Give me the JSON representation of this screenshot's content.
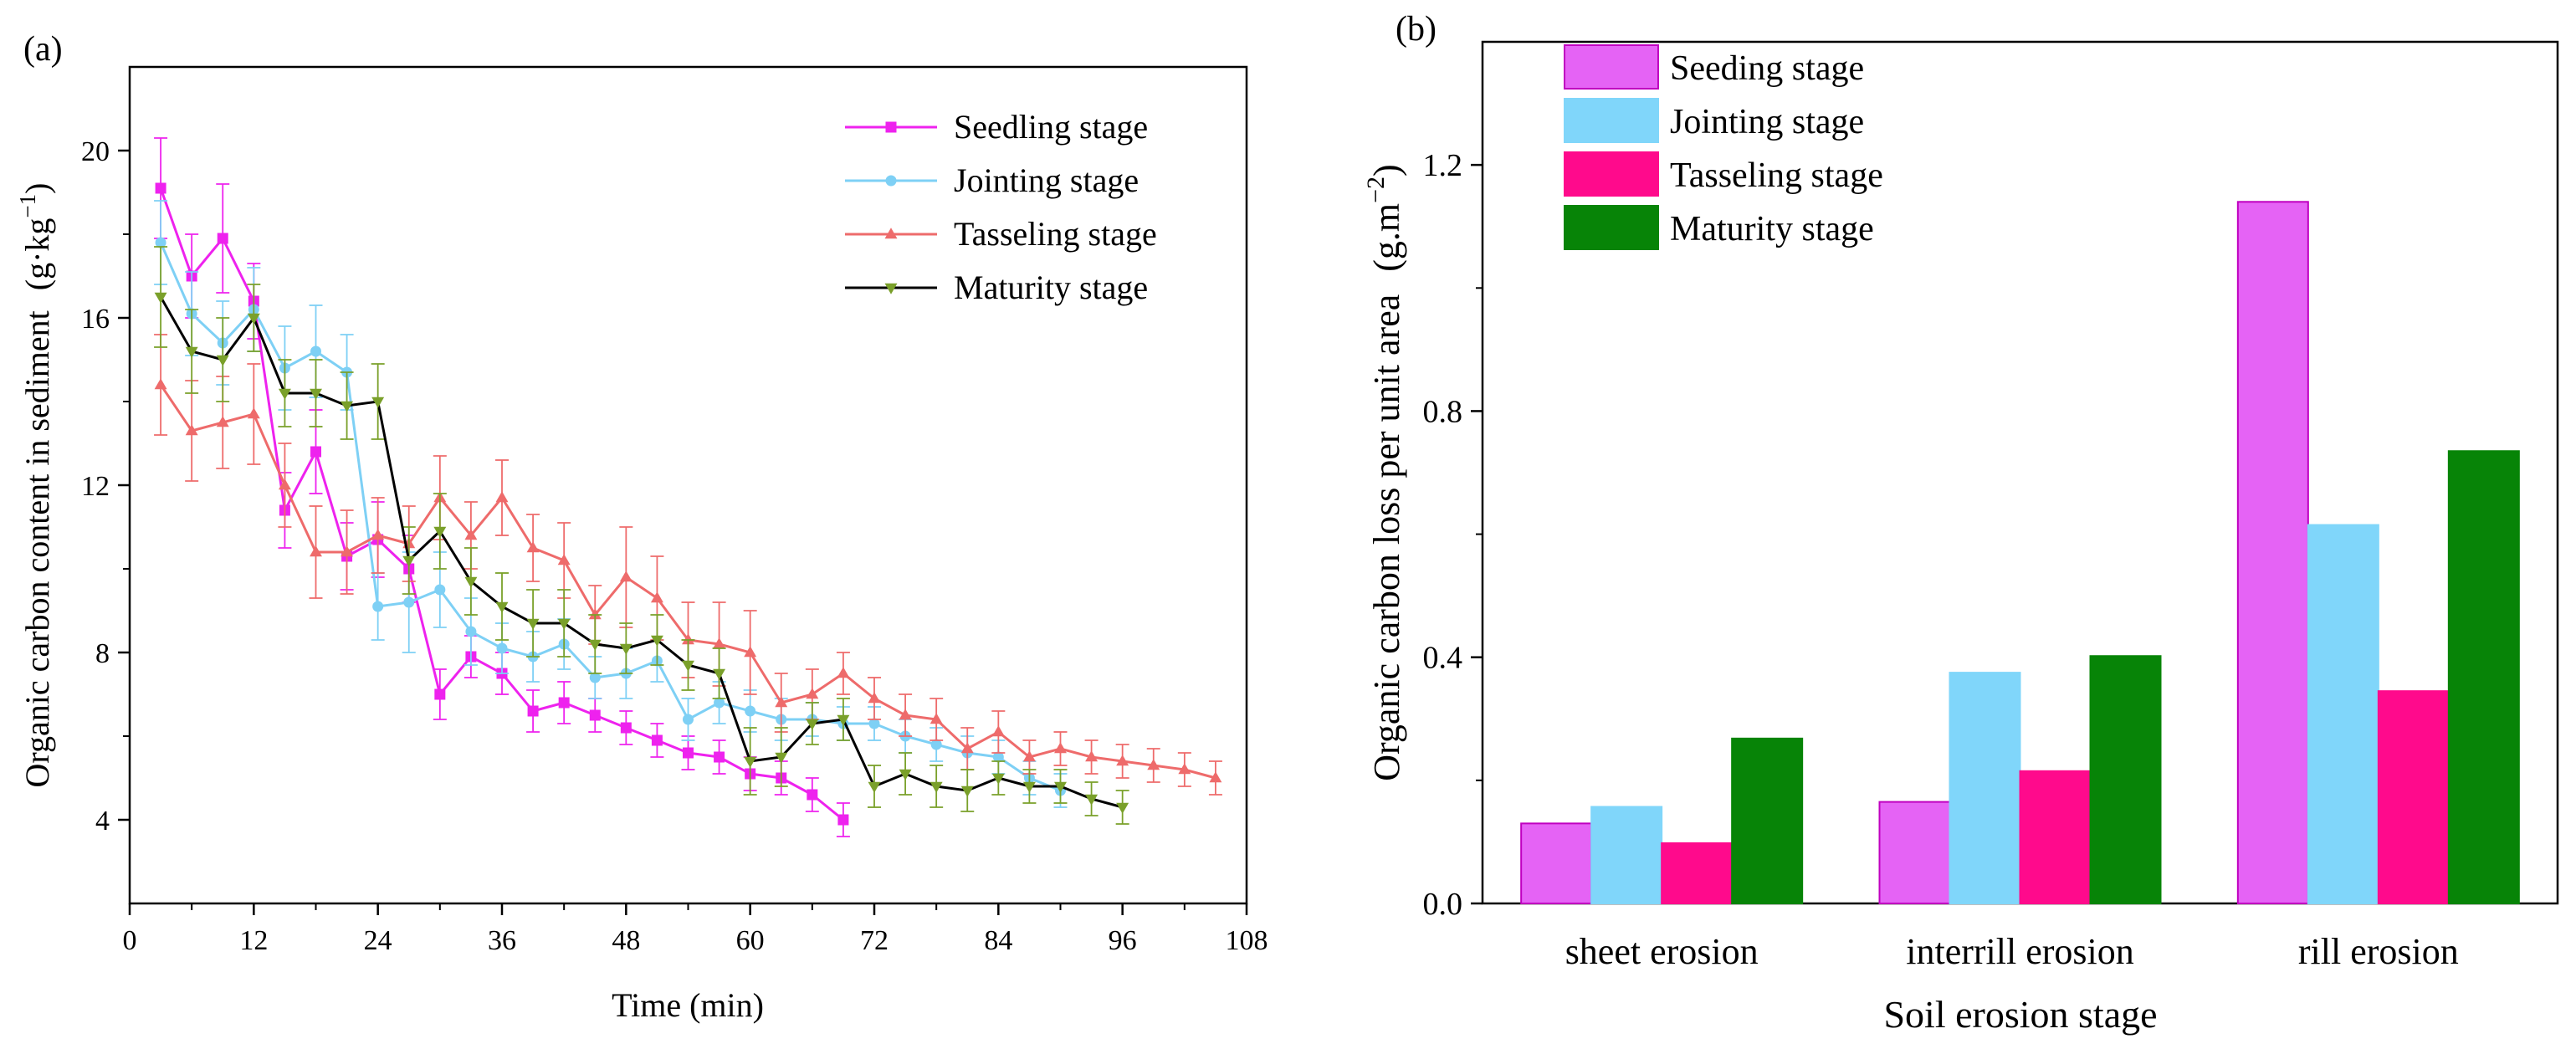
{
  "chart_data": [
    {
      "type": "line",
      "panel_label": "(a)",
      "title": "",
      "xlabel": "Time (min)",
      "ylabel_main": "Organic carbon content in sediment",
      "ylabel_unit": "(g·kg",
      "ylabel_unit_sup": "−1",
      "ylabel_unit_close": ")",
      "xlim": [
        0,
        108
      ],
      "ylim": [
        2.0,
        22.0
      ],
      "xticks": [
        0,
        12,
        24,
        36,
        48,
        60,
        72,
        84,
        96,
        108
      ],
      "yticks": [
        4,
        8,
        12,
        16,
        20
      ],
      "legend_position": "top-right",
      "series": [
        {
          "name": "Seedling stage",
          "color": "#EE22EE",
          "marker": "square",
          "x": [
            3,
            6,
            9,
            12,
            15,
            18,
            21,
            24,
            27,
            30,
            33,
            36,
            39,
            42,
            45,
            48,
            51,
            54,
            57,
            60,
            63,
            66,
            69
          ],
          "y": [
            19.1,
            17.0,
            17.9,
            16.4,
            11.4,
            12.8,
            10.3,
            10.7,
            10.0,
            7.0,
            7.9,
            7.5,
            6.6,
            6.8,
            6.5,
            6.2,
            5.9,
            5.6,
            5.5,
            5.1,
            5.0,
            4.6,
            4.0
          ],
          "err": [
            1.2,
            1.0,
            1.3,
            0.9,
            0.9,
            1.0,
            0.8,
            0.9,
            0.8,
            0.6,
            0.5,
            0.5,
            0.5,
            0.5,
            0.4,
            0.4,
            0.4,
            0.4,
            0.4,
            0.4,
            0.4,
            0.4,
            0.4
          ]
        },
        {
          "name": "Jointing stage",
          "color": "#7ED0F5",
          "marker": "circle",
          "x": [
            3,
            6,
            9,
            12,
            15,
            18,
            21,
            24,
            27,
            30,
            33,
            36,
            39,
            42,
            45,
            48,
            51,
            54,
            57,
            60,
            63,
            66,
            69,
            72,
            75,
            78,
            81,
            84,
            87,
            90
          ],
          "y": [
            17.8,
            16.1,
            15.4,
            16.2,
            14.8,
            15.2,
            14.7,
            9.1,
            9.2,
            9.5,
            8.5,
            8.1,
            7.9,
            8.2,
            7.4,
            7.5,
            7.8,
            6.4,
            6.8,
            6.6,
            6.4,
            6.4,
            6.3,
            6.3,
            6.0,
            5.8,
            5.6,
            5.5,
            5.0,
            4.7
          ],
          "err": [
            1.0,
            1.0,
            1.0,
            1.0,
            1.0,
            1.1,
            0.9,
            0.8,
            1.2,
            0.9,
            0.8,
            0.6,
            0.6,
            0.6,
            0.5,
            0.6,
            0.5,
            0.5,
            0.5,
            0.5,
            0.5,
            0.4,
            0.4,
            0.4,
            0.4,
            0.4,
            0.4,
            0.4,
            0.4,
            0.4
          ]
        },
        {
          "name": "Tasseling stage",
          "color": "#EE6B6B",
          "marker": "triangle-up",
          "x": [
            3,
            6,
            9,
            12,
            15,
            18,
            21,
            24,
            27,
            30,
            33,
            36,
            39,
            42,
            45,
            48,
            51,
            54,
            57,
            60,
            63,
            66,
            69,
            72,
            75,
            78,
            81,
            84,
            87,
            90,
            93,
            96,
            99,
            102,
            105
          ],
          "y": [
            14.4,
            13.3,
            13.5,
            13.7,
            12.0,
            10.4,
            10.4,
            10.8,
            10.6,
            11.7,
            10.8,
            11.7,
            10.5,
            10.2,
            8.9,
            9.8,
            9.3,
            8.3,
            8.2,
            8.0,
            6.8,
            7.0,
            7.5,
            6.9,
            6.5,
            6.4,
            5.7,
            6.1,
            5.5,
            5.7,
            5.5,
            5.4,
            5.3,
            5.2,
            5.0
          ],
          "err": [
            1.2,
            1.2,
            1.1,
            1.2,
            1.0,
            1.1,
            1.0,
            0.9,
            0.9,
            1.0,
            0.8,
            0.9,
            0.8,
            0.9,
            0.7,
            1.2,
            1.0,
            0.9,
            1.0,
            1.0,
            0.7,
            0.6,
            0.5,
            0.5,
            0.5,
            0.5,
            0.5,
            0.5,
            0.4,
            0.4,
            0.4,
            0.4,
            0.4,
            0.4,
            0.4
          ]
        },
        {
          "name": "Maturity stage",
          "color": "#000000",
          "marker_color": "#7AA02A",
          "err_color": "#7AA02A",
          "marker": "triangle-down",
          "x": [
            3,
            6,
            9,
            12,
            15,
            18,
            21,
            24,
            27,
            30,
            33,
            36,
            39,
            42,
            45,
            48,
            51,
            54,
            57,
            60,
            63,
            66,
            69,
            72,
            75,
            78,
            81,
            84,
            87,
            90,
            93,
            96
          ],
          "y": [
            16.5,
            15.2,
            15.0,
            16.0,
            14.2,
            14.2,
            13.9,
            14.0,
            10.2,
            10.9,
            9.7,
            9.1,
            8.7,
            8.7,
            8.2,
            8.1,
            8.3,
            7.7,
            7.5,
            5.4,
            5.5,
            6.3,
            6.4,
            4.8,
            5.1,
            4.8,
            4.7,
            5.0,
            4.8,
            4.8,
            4.5,
            4.3
          ],
          "err": [
            1.2,
            1.0,
            1.0,
            0.8,
            0.8,
            0.8,
            0.8,
            0.9,
            0.8,
            0.9,
            0.8,
            0.8,
            0.8,
            0.8,
            0.7,
            0.6,
            0.6,
            0.6,
            0.6,
            0.8,
            0.7,
            0.5,
            0.5,
            0.5,
            0.5,
            0.5,
            0.5,
            0.4,
            0.4,
            0.4,
            0.4,
            0.4
          ]
        }
      ]
    },
    {
      "type": "bar",
      "panel_label": "(b)",
      "title": "",
      "xlabel": "Soil erosion stage",
      "ylabel_main": "Organic carbon loss per unit area",
      "ylabel_unit": "(g.m",
      "ylabel_unit_sup": "−2",
      "ylabel_unit_close": ")",
      "ylim": [
        0.0,
        1.4
      ],
      "yticks": [
        0.0,
        0.4,
        0.8,
        1.2
      ],
      "yticklabels": [
        "0.0",
        "0.4",
        "0.8",
        "1.2"
      ],
      "categories": [
        "sheet erosion",
        "interrill erosion",
        "rill erosion"
      ],
      "legend_position": "top-left",
      "series": [
        {
          "name": "Seeding stage",
          "color": "#E563F5",
          "edge": "#C000C0",
          "values": [
            0.13,
            0.165,
            1.14
          ]
        },
        {
          "name": "Jointing stage",
          "color": "#80D6FA",
          "edge": "#80D6FA",
          "values": [
            0.157,
            0.375,
            0.615
          ]
        },
        {
          "name": "Tasseling stage",
          "color": "#FF0A8C",
          "edge": "#FF0A8C",
          "values": [
            0.098,
            0.215,
            0.345
          ]
        },
        {
          "name": "Maturity stage",
          "color": "#078407",
          "edge": "#078407",
          "values": [
            0.268,
            0.402,
            0.735
          ]
        }
      ]
    }
  ]
}
